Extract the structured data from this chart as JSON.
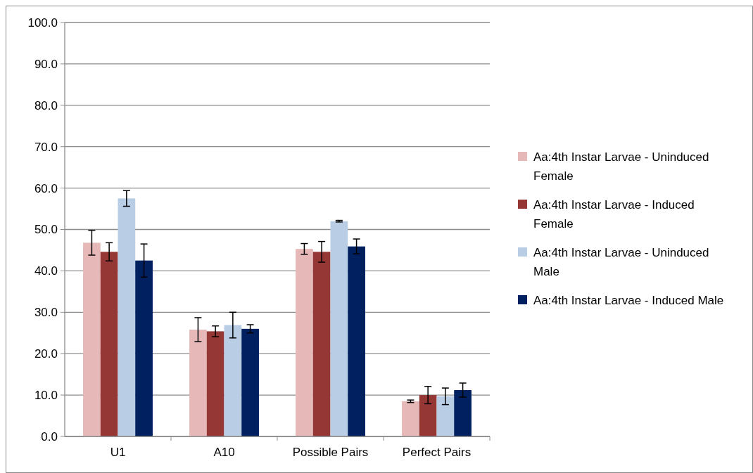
{
  "chart_data": {
    "type": "bar",
    "categories": [
      "U1",
      "A10",
      "Possible Pairs",
      "Perfect Pairs"
    ],
    "series": [
      {
        "name": "Aa:4th Instar Larvae - Uninduced Female",
        "color": "#e6b9b8",
        "values": [
          46.8,
          25.8,
          45.3,
          8.5
        ],
        "errors": [
          3.0,
          2.9,
          1.3,
          0.3
        ]
      },
      {
        "name": "Aa:4th Instar Larvae - Induced Female",
        "color": "#953735",
        "values": [
          44.6,
          25.4,
          44.6,
          10.0
        ],
        "errors": [
          2.2,
          1.3,
          2.5,
          2.1
        ]
      },
      {
        "name": "Aa:4th Instar Larvae - Uninduced Male",
        "color": "#b9cde5",
        "values": [
          57.5,
          26.9,
          52.0,
          9.7
        ],
        "errors": [
          1.9,
          3.1,
          0.2,
          2.0
        ]
      },
      {
        "name": "Aa:4th Instar Larvae - Induced Male",
        "color": "#002060",
        "values": [
          42.5,
          26.0,
          45.9,
          11.2
        ],
        "errors": [
          4.0,
          1.0,
          1.8,
          1.7
        ]
      }
    ],
    "ylim": [
      0,
      100
    ],
    "yticks": [
      {
        "value": 0,
        "label": "0.0"
      },
      {
        "value": 10,
        "label": "10.0"
      },
      {
        "value": 20,
        "label": "20.0"
      },
      {
        "value": 30,
        "label": "30.0"
      },
      {
        "value": 40,
        "label": "40.0"
      },
      {
        "value": 50,
        "label": "50.0"
      },
      {
        "value": 60,
        "label": "60.0"
      },
      {
        "value": 70,
        "label": "70.0"
      },
      {
        "value": 80,
        "label": "80.0"
      },
      {
        "value": 90,
        "label": "90.0"
      },
      {
        "value": 100,
        "label": "100.0"
      }
    ],
    "grid": "y",
    "legend": "right"
  }
}
